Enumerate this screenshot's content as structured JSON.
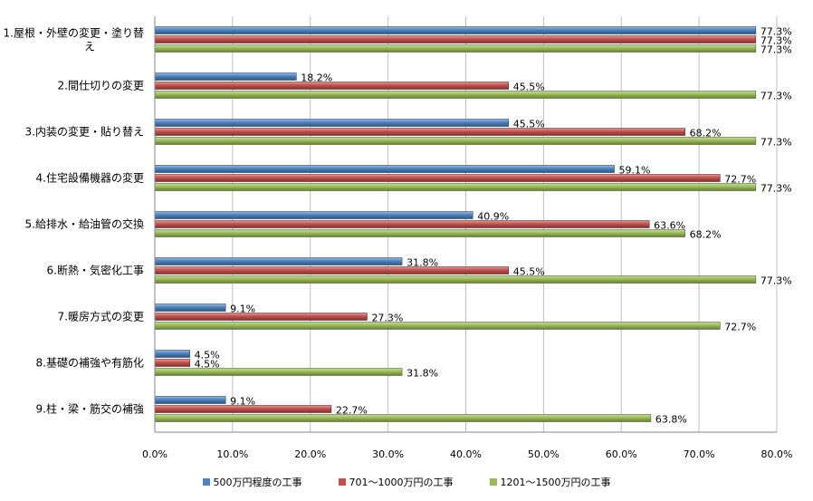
{
  "chart_data": {
    "type": "bar",
    "orientation": "horizontal",
    "categories": [
      "1.屋根・外壁の変更・塗り替え",
      "2.間仕切りの変更",
      "3.内装の変更・貼り替え",
      "4.住宅設備機器の変更",
      "5.給排水・給油管の交換",
      "6.断熱・気密化工事",
      "7.暖房方式の変更",
      "8.基礎の補強や有筋化",
      "9.柱・梁・筋交の補強"
    ],
    "series": [
      {
        "name": "500万円程度の工事",
        "color": "#4F81BD",
        "values": [
          77.3,
          18.2,
          45.5,
          59.1,
          40.9,
          31.8,
          9.1,
          4.5,
          9.1
        ],
        "labels": [
          "77.3%",
          "18.2%",
          "45.5%",
          "59.1%",
          "40.9%",
          "31.8%",
          "9.1%",
          "4.5%",
          "9.1%"
        ]
      },
      {
        "name": "701～1000万円の工事",
        "color": "#C0504D",
        "values": [
          77.3,
          45.5,
          68.2,
          72.7,
          63.6,
          45.5,
          27.3,
          4.5,
          22.7
        ],
        "labels": [
          "77.3%",
          "45.5%",
          "68.2%",
          "72.7%",
          "63.6%",
          "45.5%",
          "27.3%",
          "4.5%",
          "22.7%"
        ]
      },
      {
        "name": "1201～1500万円の工事",
        "color": "#9BBB59",
        "values": [
          77.3,
          77.3,
          77.3,
          77.3,
          68.2,
          77.3,
          72.7,
          31.8,
          63.8
        ],
        "labels": [
          "77.3%",
          "77.3%",
          "77.3%",
          "77.3%",
          "68.2%",
          "77.3%",
          "72.7%",
          "31.8%",
          "63.8%"
        ]
      }
    ],
    "xlim": [
      0,
      80
    ],
    "xticks": [
      "0.0%",
      "10.0%",
      "20.0%",
      "30.0%",
      "40.0%",
      "50.0%",
      "60.0%",
      "70.0%",
      "80.0%"
    ],
    "xlabel": "",
    "ylabel": "",
    "title": "",
    "grid": true,
    "legend_position": "bottom"
  }
}
